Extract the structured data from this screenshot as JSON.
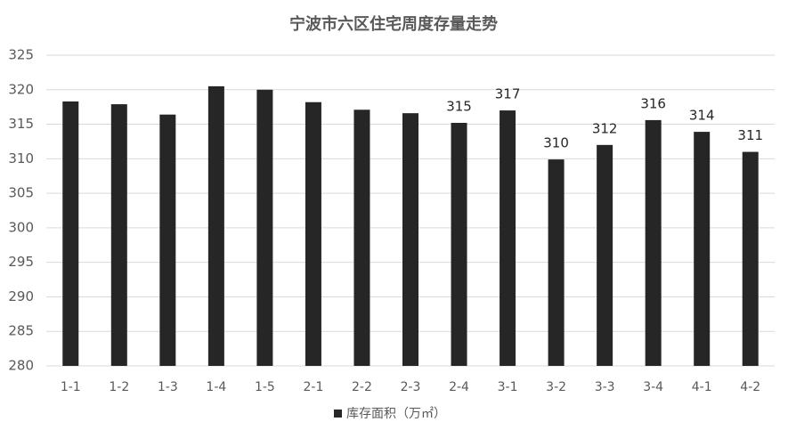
{
  "chart_data": {
    "type": "bar",
    "title": "宁波市六区住宅周度存量走势",
    "categories": [
      "1-1",
      "1-2",
      "1-3",
      "1-4",
      "1-5",
      "2-1",
      "2-2",
      "2-3",
      "2-4",
      "3-1",
      "3-2",
      "3-3",
      "3-4",
      "4-1",
      "4-2"
    ],
    "series": [
      {
        "name": "库存面积（万㎡）",
        "color": "#262626",
        "values": [
          318.3,
          317.9,
          316.4,
          320.5,
          320.0,
          318.2,
          317.1,
          316.6,
          315.2,
          317.0,
          309.9,
          312.0,
          315.6,
          313.9,
          311.0
        ],
        "value_labels": [
          null,
          null,
          null,
          null,
          null,
          null,
          null,
          null,
          "315",
          "317",
          "310",
          "312",
          "316",
          "314",
          "311"
        ]
      }
    ],
    "ylim": [
      280,
      325
    ],
    "yticks": [
      280,
      285,
      290,
      295,
      300,
      305,
      310,
      315,
      320,
      325
    ],
    "grid": true,
    "legend": "bottom"
  }
}
